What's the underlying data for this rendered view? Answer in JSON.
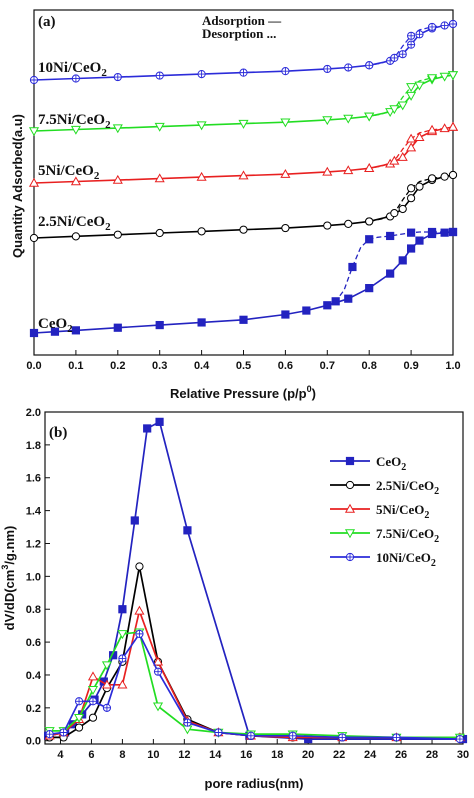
{
  "chart_data": [
    {
      "panel_label": "(a)",
      "type": "line",
      "xlabel": "Relative Pressure (p/p",
      "xlabel_sup": "0",
      "xlabel_close": ")",
      "ylabel": "Quantity Adsorbed(a.u)",
      "xlim": [
        0,
        1.0
      ],
      "xticks": [
        0.0,
        0.1,
        0.2,
        0.3,
        0.4,
        0.5,
        0.6,
        0.7,
        0.8,
        0.9,
        1.0
      ],
      "xtick_labels": [
        "0.0",
        "0.1",
        "0.2",
        "0.3",
        "0.4",
        "0.5",
        "0.6",
        "0.7",
        "0.8",
        "0.9",
        "1.0"
      ],
      "y_ticks_shown": false,
      "legend": {
        "adsorption": "Adsorption —",
        "desorption": "Desorption ..."
      },
      "series": [
        {
          "name": "10Ni/CeO",
          "name_sub": "2",
          "color": "#2b2bd9",
          "marker": "circle-cross",
          "adsorption": {
            "x": [
              0.0,
              0.1,
              0.2,
              0.3,
              0.4,
              0.5,
              0.6,
              0.7,
              0.75,
              0.8,
              0.85,
              0.88,
              0.9,
              0.92,
              0.95,
              0.98,
              1.0
            ],
            "y": [
              100,
              102,
              104,
              106,
              108,
              110,
              112,
              115,
              117,
              120,
              126,
              135,
              148,
              162,
              170,
              174,
              176
            ]
          },
          "desorption": {
            "x": [
              1.0,
              0.98,
              0.95,
              0.92,
              0.9,
              0.88,
              0.86,
              0.83,
              0.8
            ],
            "y": [
              176,
              174,
              172,
              168,
              160,
              146,
              130,
              123,
              120
            ]
          }
        },
        {
          "name": "7.5Ni/CeO",
          "name_sub": "2",
          "color": "#22dd22",
          "marker": "triangle-down",
          "adsorption": {
            "x": [
              0.0,
              0.1,
              0.2,
              0.3,
              0.4,
              0.5,
              0.6,
              0.7,
              0.75,
              0.8,
              0.85,
              0.88,
              0.9,
              0.92,
              0.95,
              0.98,
              1.0
            ],
            "y": [
              100,
              102,
              104,
              106,
              108,
              110,
              112,
              115,
              117,
              120,
              126,
              135,
              148,
              162,
              170,
              174,
              176
            ]
          },
          "desorption": {
            "x": [
              1.0,
              0.98,
              0.95,
              0.92,
              0.9,
              0.88,
              0.86,
              0.83,
              0.8
            ],
            "y": [
              176,
              174,
              172,
              168,
              160,
              146,
              130,
              123,
              120
            ]
          }
        },
        {
          "name": "5Ni/CeO",
          "name_sub": "2",
          "color": "#e82020",
          "marker": "triangle-up",
          "adsorption": {
            "x": [
              0.0,
              0.1,
              0.2,
              0.3,
              0.4,
              0.5,
              0.6,
              0.7,
              0.75,
              0.8,
              0.85,
              0.88,
              0.9,
              0.92,
              0.95,
              0.98,
              1.0
            ],
            "y": [
              100,
              102,
              104,
              106,
              108,
              110,
              112,
              115,
              117,
              120,
              126,
              135,
              148,
              162,
              170,
              174,
              176
            ]
          },
          "desorption": {
            "x": [
              1.0,
              0.98,
              0.95,
              0.92,
              0.9,
              0.88,
              0.86,
              0.83,
              0.8
            ],
            "y": [
              176,
              174,
              172,
              168,
              160,
              146,
              130,
              123,
              120
            ]
          }
        },
        {
          "name": "2.5Ni/CeO",
          "name_sub": "2",
          "color": "#000000",
          "marker": "circle-open",
          "adsorption": {
            "x": [
              0.0,
              0.1,
              0.2,
              0.3,
              0.4,
              0.5,
              0.6,
              0.7,
              0.75,
              0.8,
              0.85,
              0.88,
              0.9,
              0.92,
              0.95,
              0.98,
              1.0
            ],
            "y": [
              100,
              102,
              104,
              106,
              108,
              110,
              112,
              115,
              117,
              120,
              126,
              135,
              148,
              162,
              170,
              174,
              176
            ]
          },
          "desorption": {
            "x": [
              1.0,
              0.98,
              0.95,
              0.92,
              0.9,
              0.88,
              0.86,
              0.83,
              0.8
            ],
            "y": [
              176,
              174,
              172,
              168,
              160,
              146,
              130,
              123,
              120
            ]
          }
        },
        {
          "name": "CeO",
          "name_sub": "2",
          "color": "#2323c0",
          "marker": "square-filled",
          "adsorption": {
            "x": [
              0.0,
              0.05,
              0.1,
              0.2,
              0.3,
              0.4,
              0.5,
              0.6,
              0.65,
              0.7,
              0.75,
              0.8,
              0.85,
              0.88,
              0.9,
              0.92,
              0.95,
              0.98,
              1.0
            ],
            "y": [
              100,
              102,
              104,
              108,
              112,
              116,
              120,
              128,
              134,
              142,
              152,
              168,
              190,
              210,
              228,
              240,
              250,
              252,
              253
            ]
          },
          "desorption": {
            "x": [
              1.0,
              0.98,
              0.95,
              0.92,
              0.9,
              0.88,
              0.85,
              0.82,
              0.8,
              0.78,
              0.76,
              0.74,
              0.72,
              0.7
            ],
            "y": [
              253,
              253,
              253,
              253,
              252,
              250,
              247,
              245,
              242,
              230,
              200,
              165,
              148,
              140
            ]
          }
        }
      ]
    },
    {
      "panel_label": "(b)",
      "type": "line",
      "xlabel": "pore radius(nm)",
      "ylabel": "dV/dD(cm",
      "ylabel_sup": "3",
      "ylabel_close": "/g.nm)",
      "xlim": [
        3,
        30
      ],
      "ylim": [
        -0.02,
        2.0
      ],
      "xticks": [
        4,
        6,
        8,
        10,
        12,
        14,
        16,
        18,
        20,
        22,
        24,
        26,
        28,
        30
      ],
      "xtick_labels": [
        "4",
        "6",
        "8",
        "10",
        "12",
        "14",
        "16",
        "18",
        "20",
        "22",
        "24",
        "26",
        "28",
        "30"
      ],
      "yticks": [
        0.0,
        0.2,
        0.4,
        0.6,
        0.8,
        1.0,
        1.2,
        1.4,
        1.6,
        1.8,
        2.0
      ],
      "ytick_labels": [
        "0.0",
        "0.2",
        "0.4",
        "0.6",
        "0.8",
        "1.0",
        "1.2",
        "1.4",
        "1.6",
        "1.8",
        "2.0"
      ],
      "series": [
        {
          "name": "CeO",
          "name_sub": "2",
          "color": "#2323c0",
          "marker": "square-filled",
          "x": [
            3.2,
            4.3,
            4.8,
            5.4,
            6.2,
            6.8,
            7.4,
            8.0,
            8.8,
            9.6,
            10.4,
            12.2,
            16.2,
            20.0,
            30.0
          ],
          "y": [
            0.03,
            0.05,
            0.1,
            0.16,
            0.25,
            0.36,
            0.52,
            0.8,
            1.34,
            1.9,
            1.94,
            1.28,
            0.03,
            0.01,
            0.01
          ]
        },
        {
          "name": "2.5Ni/CeO",
          "name_sub": "2",
          "color": "#000000",
          "marker": "circle-open",
          "x": [
            3.3,
            4.2,
            5.2,
            6.1,
            7.0,
            8.0,
            9.1,
            10.3,
            12.2,
            14.2,
            16.3,
            19.0,
            22.2,
            25.7,
            29.8
          ],
          "y": [
            0.02,
            0.02,
            0.08,
            0.14,
            0.32,
            0.48,
            1.06,
            0.48,
            0.13,
            0.05,
            0.03,
            0.02,
            0.02,
            0.02,
            0.02
          ]
        },
        {
          "name": "5Ni/CeO",
          "name_sub": "2",
          "color": "#e82020",
          "marker": "triangle-up",
          "x": [
            3.3,
            4.2,
            5.2,
            6.1,
            7.0,
            8.0,
            9.1,
            10.3,
            12.2,
            14.2,
            16.3,
            19.0,
            22.2,
            25.7,
            29.8
          ],
          "y": [
            0.03,
            0.05,
            0.13,
            0.39,
            0.34,
            0.34,
            0.79,
            0.48,
            0.12,
            0.05,
            0.03,
            0.02,
            0.02,
            0.02,
            0.02
          ]
        },
        {
          "name": "7.5Ni/CeO",
          "name_sub": "2",
          "color": "#22dd22",
          "marker": "triangle-down",
          "x": [
            3.3,
            4.2,
            5.2,
            6.1,
            7.0,
            8.0,
            9.1,
            10.3,
            12.2,
            14.2,
            16.3,
            19.0,
            22.2,
            25.7,
            29.8
          ],
          "y": [
            0.06,
            0.06,
            0.14,
            0.31,
            0.46,
            0.65,
            0.66,
            0.21,
            0.07,
            0.05,
            0.04,
            0.04,
            0.03,
            0.02,
            0.02
          ]
        },
        {
          "name": "10Ni/CeO",
          "name_sub": "2",
          "color": "#2b2bd9",
          "marker": "circle-cross",
          "x": [
            3.3,
            4.2,
            5.2,
            6.1,
            7.0,
            8.0,
            9.1,
            10.3,
            12.2,
            14.2,
            16.3,
            19.0,
            22.2,
            25.7,
            29.8
          ],
          "y": [
            0.04,
            0.05,
            0.24,
            0.24,
            0.2,
            0.5,
            0.65,
            0.42,
            0.11,
            0.05,
            0.03,
            0.03,
            0.02,
            0.02,
            0.01
          ]
        }
      ]
    }
  ]
}
